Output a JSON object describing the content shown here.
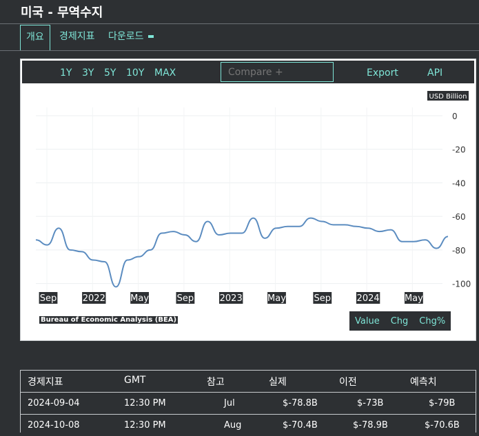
{
  "page": {
    "title": "미국 - 무역수지"
  },
  "tabs": [
    {
      "label": "개요",
      "active": true
    },
    {
      "label": "경제지표"
    },
    {
      "label": "다운로드"
    }
  ],
  "toolbar": {
    "ranges": [
      "1Y",
      "3Y",
      "5Y",
      "10Y",
      "MAX"
    ],
    "compare_placeholder": "Compare +",
    "export_label": "Export",
    "api_label": "API"
  },
  "colors": {
    "background": "#2d3033",
    "accent": "#7fe6d8",
    "line": "#5b8cc0"
  },
  "chart_data": {
    "type": "line",
    "unit_label": "USD Billion",
    "ylim": [
      -110,
      0
    ],
    "yticks": [
      0,
      -20,
      -40,
      -60,
      -80,
      -100
    ],
    "xtick_labels": [
      "Sep",
      "2022",
      "May",
      "Sep",
      "2023",
      "May",
      "Sep",
      "2024",
      "May"
    ],
    "grid": true,
    "source": "Bureau of Economic Analysis (BEA)",
    "series": [
      {
        "values": [
          -74,
          -77,
          -67,
          -80,
          -81,
          -86,
          -87,
          -102,
          -86,
          -84,
          -80,
          -70,
          -69,
          -71,
          -75,
          -63,
          -71,
          -70,
          -70,
          -61,
          -73,
          -67,
          -66,
          -66,
          -61,
          -63,
          -65,
          -65,
          -66,
          -67,
          -69,
          -68,
          -75,
          -75,
          -74,
          -79,
          -72
        ]
      }
    ]
  },
  "value_buttons": [
    "Value",
    "Chg",
    "Chg%"
  ],
  "table": {
    "headers": [
      "경제지표",
      "GMT",
      "참고",
      "실제",
      "이전",
      "예측치"
    ],
    "rows": [
      [
        "2024-09-04",
        "12:30 PM",
        "Jul",
        "$-78.8B",
        "$-73B",
        "$-79B"
      ],
      [
        "2024-10-08",
        "12:30 PM",
        "Aug",
        "$-70.4B",
        "$-78.9B",
        "$-70.6B"
      ]
    ]
  }
}
